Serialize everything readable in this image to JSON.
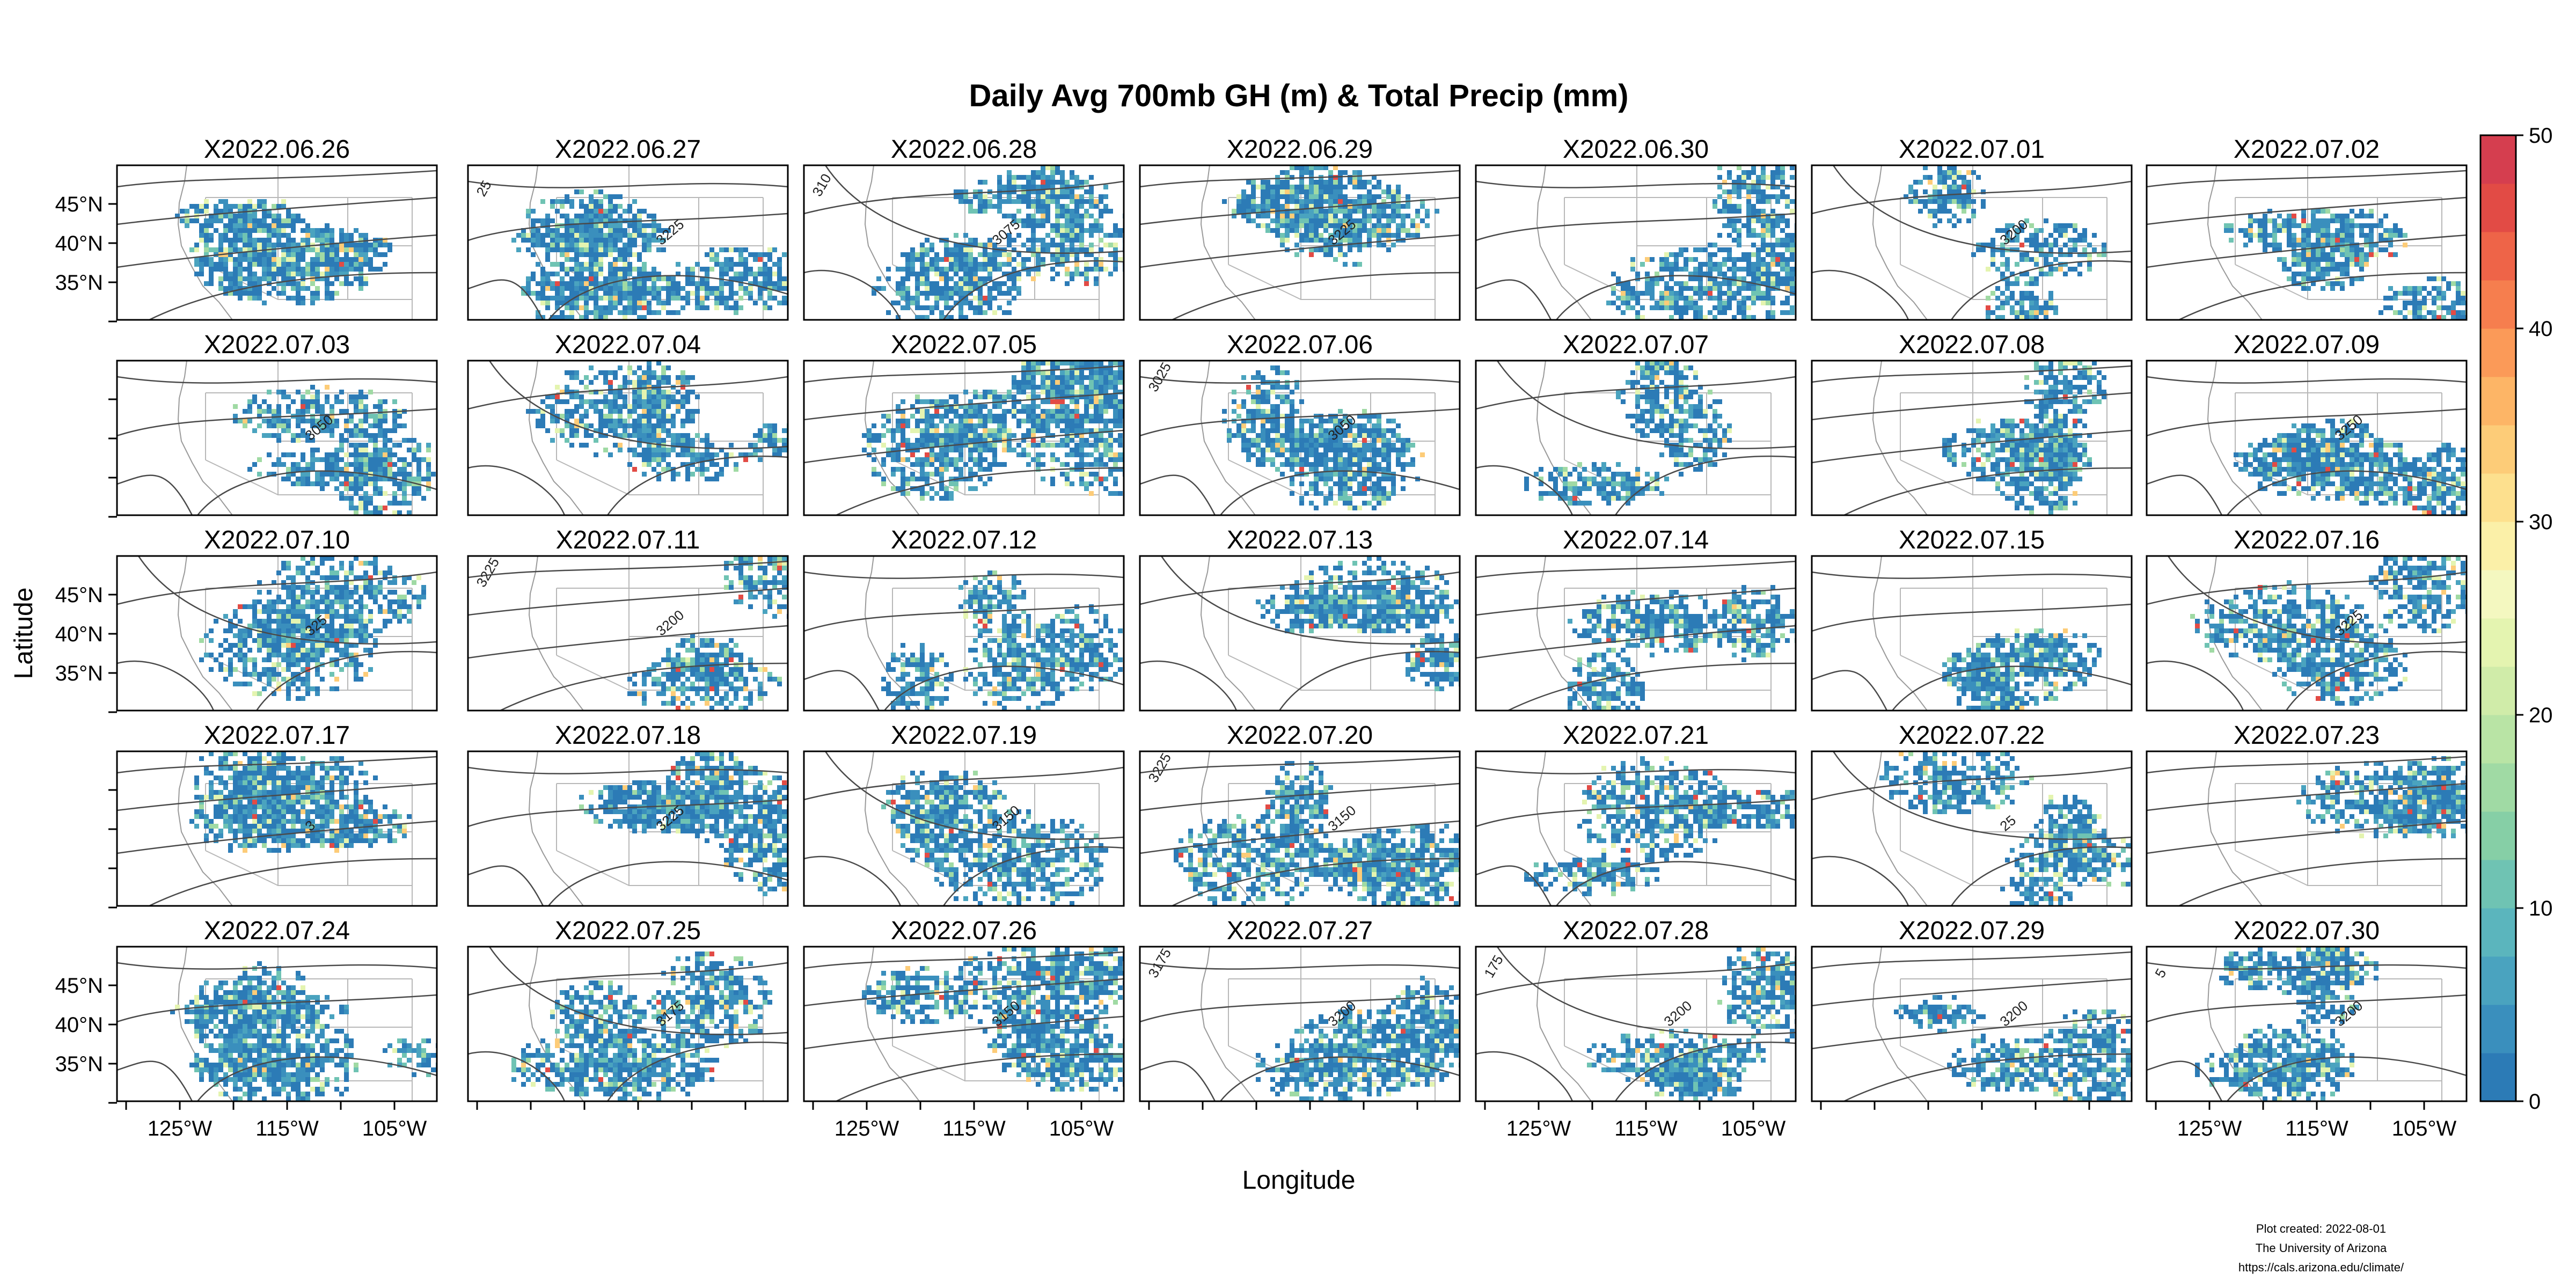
{
  "title": "Daily Avg 700mb GH (m) & Total Precip (mm)",
  "axes": {
    "xlabel": "Longitude",
    "ylabel": "Latitude",
    "lon_ticks": [
      "125°W",
      "115°W",
      "105°W"
    ],
    "lat_ticks": [
      "45°N",
      "40°N",
      "35°N"
    ]
  },
  "colorbar": {
    "min": 0,
    "max": 50,
    "ticks": [
      "0",
      "10",
      "20",
      "30",
      "40",
      "50"
    ],
    "colors": [
      "#2c7bb6",
      "#3a8fbd",
      "#4aa3bf",
      "#5bb5bd",
      "#6fc3b3",
      "#86cfa6",
      "#a0daa4",
      "#b9e4a5",
      "#d0eca9",
      "#e4f4b0",
      "#f4f8c0",
      "#fbf0a8",
      "#fde08e",
      "#fdcc78",
      "#fdb566",
      "#fb9a58",
      "#f67e4e",
      "#ee6448",
      "#e24b45",
      "#d53e4f"
    ]
  },
  "panels": [
    {
      "label": "X2022.06.26",
      "contours": [
        "",
        ""
      ]
    },
    {
      "label": "X2022.06.27",
      "contours": [
        "3225",
        "25"
      ]
    },
    {
      "label": "X2022.06.28",
      "contours": [
        "3075",
        "310"
      ]
    },
    {
      "label": "X2022.06.29",
      "contours": [
        "3225",
        ""
      ]
    },
    {
      "label": "X2022.06.30",
      "contours": [
        "",
        ""
      ]
    },
    {
      "label": "X2022.07.01",
      "contours": [
        "3200",
        ""
      ]
    },
    {
      "label": "X2022.07.02",
      "contours": [
        "",
        ""
      ]
    },
    {
      "label": "X2022.07.03",
      "contours": [
        "3050",
        ""
      ]
    },
    {
      "label": "X2022.07.04",
      "contours": [
        "",
        ""
      ]
    },
    {
      "label": "X2022.07.05",
      "contours": [
        "",
        ""
      ]
    },
    {
      "label": "X2022.07.06",
      "contours": [
        "3050",
        "3025"
      ]
    },
    {
      "label": "X2022.07.07",
      "contours": [
        "",
        ""
      ]
    },
    {
      "label": "X2022.07.08",
      "contours": [
        "",
        ""
      ]
    },
    {
      "label": "X2022.07.09",
      "contours": [
        "3250",
        ""
      ]
    },
    {
      "label": "X2022.07.10",
      "contours": [
        "325",
        ""
      ]
    },
    {
      "label": "X2022.07.11",
      "contours": [
        "3200",
        "3225"
      ]
    },
    {
      "label": "X2022.07.12",
      "contours": [
        "",
        ""
      ]
    },
    {
      "label": "X2022.07.13",
      "contours": [
        "",
        ""
      ]
    },
    {
      "label": "X2022.07.14",
      "contours": [
        "",
        ""
      ]
    },
    {
      "label": "X2022.07.15",
      "contours": [
        "",
        ""
      ]
    },
    {
      "label": "X2022.07.16",
      "contours": [
        "3225",
        ""
      ]
    },
    {
      "label": "X2022.07.17",
      "contours": [
        "3",
        ""
      ]
    },
    {
      "label": "X2022.07.18",
      "contours": [
        "3225",
        ""
      ]
    },
    {
      "label": "X2022.07.19",
      "contours": [
        "3150",
        ""
      ]
    },
    {
      "label": "X2022.07.20",
      "contours": [
        "3150",
        "3225"
      ]
    },
    {
      "label": "X2022.07.21",
      "contours": [
        "",
        ""
      ]
    },
    {
      "label": "X2022.07.22",
      "contours": [
        "25",
        ""
      ]
    },
    {
      "label": "X2022.07.23",
      "contours": [
        "",
        ""
      ]
    },
    {
      "label": "X2022.07.24",
      "contours": [
        "",
        ""
      ]
    },
    {
      "label": "X2022.07.25",
      "contours": [
        "3175",
        ""
      ]
    },
    {
      "label": "X2022.07.26",
      "contours": [
        "3150",
        ""
      ]
    },
    {
      "label": "X2022.07.27",
      "contours": [
        "3200",
        "3175"
      ]
    },
    {
      "label": "X2022.07.28",
      "contours": [
        "3200",
        "175"
      ]
    },
    {
      "label": "X2022.07.29",
      "contours": [
        "3200",
        ""
      ]
    },
    {
      "label": "X2022.07.30",
      "contours": [
        "3200",
        "5"
      ]
    }
  ],
  "credits": {
    "created": "Plot created: 2022-08-01",
    "org": "The University of Arizona",
    "url": "https://cals.arizona.edu/climate/"
  }
}
